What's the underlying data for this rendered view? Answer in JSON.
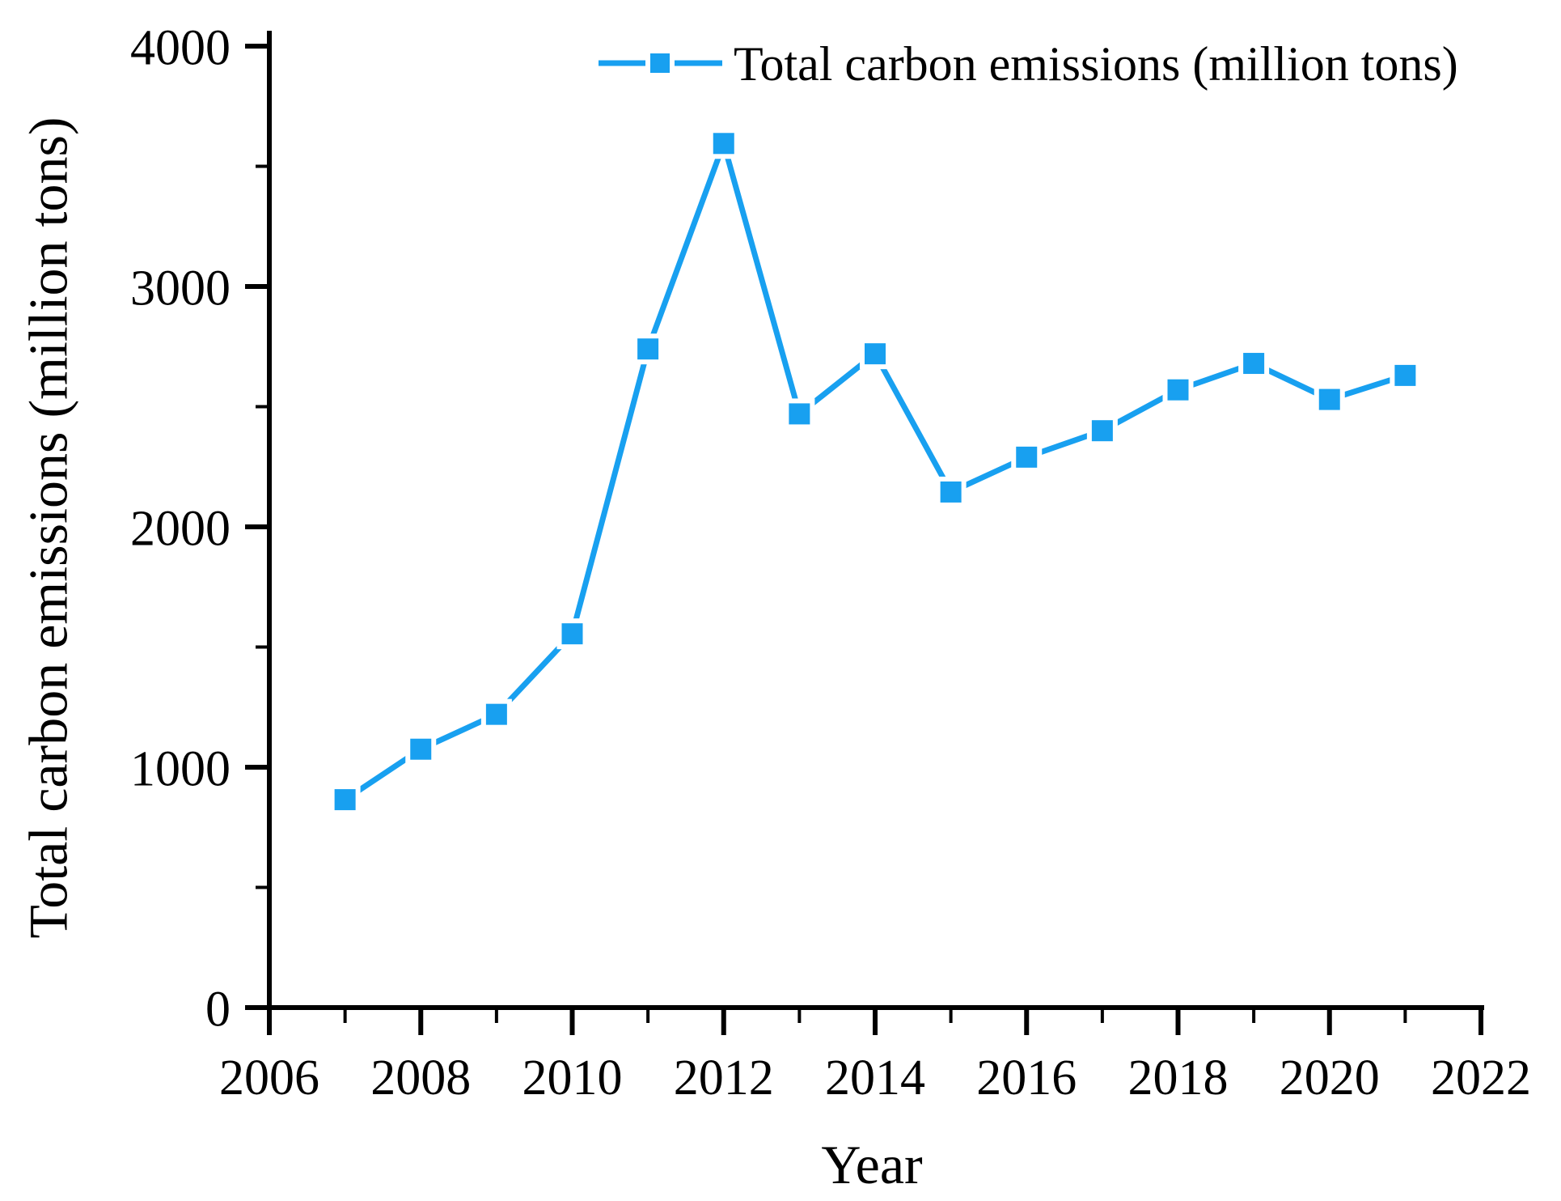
{
  "chart_data": {
    "type": "line",
    "title": "",
    "xlabel": "Year",
    "ylabel": "Total carbon emissions (million tons)",
    "legend": [
      "Total carbon emissions (million tons)"
    ],
    "legend_position": "top-right-inside",
    "grid": false,
    "xlim": [
      2006,
      2022
    ],
    "ylim": [
      0,
      4000
    ],
    "x_major_ticks": [
      2006,
      2008,
      2010,
      2012,
      2014,
      2016,
      2018,
      2020,
      2022
    ],
    "x_minor_ticks": [
      2007,
      2009,
      2011,
      2013,
      2015,
      2017,
      2019,
      2021
    ],
    "y_major_ticks": [
      0,
      1000,
      2000,
      3000,
      4000
    ],
    "y_minor_ticks": [
      500,
      1500,
      2500,
      3500
    ],
    "x": [
      2007,
      2008,
      2009,
      2010,
      2011,
      2012,
      2013,
      2014,
      2015,
      2016,
      2017,
      2018,
      2019,
      2020,
      2021
    ],
    "series": [
      {
        "name": "Total carbon emissions (million tons)",
        "marker": "square",
        "values": [
          865,
          1075,
          1220,
          1555,
          2740,
          3595,
          2470,
          2720,
          2145,
          2290,
          2400,
          2570,
          2680,
          2530,
          2630
        ]
      }
    ]
  },
  "colors": {
    "line": "#18A0F0",
    "marker": "#18A0F0",
    "axis": "#000000",
    "text": "#000000",
    "background": "#FFFFFF"
  }
}
